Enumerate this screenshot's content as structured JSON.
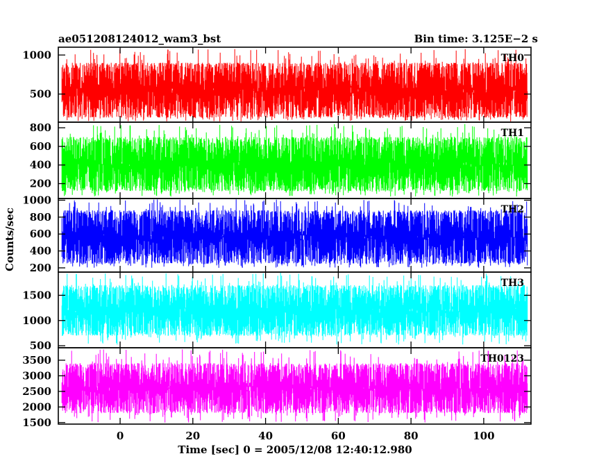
{
  "chart_data": {
    "type": "line",
    "title": "ae051208124012_wam3_bst",
    "bin_time_label": "Bin time: 3.125E−2 s",
    "xlabel": "Time [sec] 0 = 2005/12/08 12:40:12.980",
    "ylabel": "Counts/sec",
    "xlim": [
      -17,
      113
    ],
    "x_data_range": [
      -16,
      112
    ],
    "x_ticks": [
      0,
      20,
      40,
      60,
      80,
      100
    ],
    "panels": [
      {
        "name": "TH0",
        "color": "#ff0000",
        "ylim": [
          140,
          1100
        ],
        "y_ticks": [
          500,
          1000
        ],
        "typical_range": [
          200,
          900
        ],
        "peak_range": [
          150,
          1080
        ]
      },
      {
        "name": "TH1",
        "color": "#00ff00",
        "ylim": [
          40,
          860
        ],
        "y_ticks": [
          200,
          400,
          600,
          800
        ],
        "typical_range": [
          120,
          700
        ],
        "peak_range": [
          60,
          840
        ]
      },
      {
        "name": "TH2",
        "color": "#0000ff",
        "ylim": [
          150,
          1020
        ],
        "y_ticks": [
          200,
          400,
          600,
          800,
          1000
        ],
        "typical_range": [
          250,
          880
        ],
        "peak_range": [
          200,
          1010
        ]
      },
      {
        "name": "TH3",
        "color": "#00ffff",
        "ylim": [
          460,
          1960
        ],
        "y_ticks": [
          500,
          1000,
          1500
        ],
        "typical_range": [
          700,
          1700
        ],
        "peak_range": [
          520,
          1950
        ]
      },
      {
        "name": "TH0123",
        "color": "#ff00ff",
        "ylim": [
          1450,
          3900
        ],
        "y_ticks": [
          1500,
          2000,
          2500,
          3000,
          3500
        ],
        "typical_range": [
          1800,
          3400
        ],
        "peak_range": [
          1500,
          3850
        ]
      }
    ]
  }
}
